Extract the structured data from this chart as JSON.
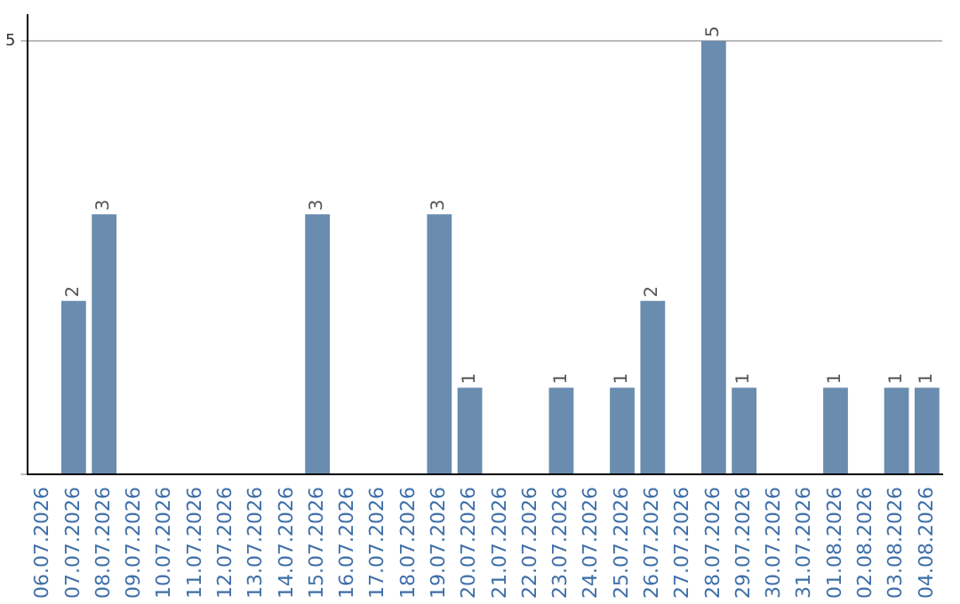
{
  "chart_data": {
    "type": "bar",
    "categories": [
      "06.07.2026",
      "07.07.2026",
      "08.07.2026",
      "09.07.2026",
      "10.07.2026",
      "11.07.2026",
      "12.07.2026",
      "13.07.2026",
      "14.07.2026",
      "15.07.2026",
      "16.07.2026",
      "17.07.2026",
      "18.07.2026",
      "19.07.2026",
      "20.07.2026",
      "21.07.2026",
      "22.07.2026",
      "23.07.2026",
      "24.07.2026",
      "25.07.2026",
      "26.07.2026",
      "27.07.2026",
      "28.07.2026",
      "29.07.2026",
      "30.07.2026",
      "31.07.2026",
      "01.08.2026",
      "02.08.2026",
      "03.08.2026",
      "04.08.2026"
    ],
    "values": [
      0,
      2,
      3,
      0,
      0,
      0,
      0,
      0,
      0,
      3,
      0,
      0,
      0,
      3,
      1,
      0,
      0,
      1,
      0,
      1,
      2,
      0,
      5,
      1,
      0,
      0,
      1,
      0,
      1,
      1
    ],
    "value_labels": [
      null,
      "2",
      "3",
      null,
      null,
      null,
      null,
      null,
      null,
      "3",
      null,
      null,
      null,
      "3",
      "1",
      null,
      null,
      "1",
      null,
      "1",
      "2",
      null,
      "5",
      "1",
      null,
      null,
      "1",
      null,
      "1",
      "1"
    ],
    "color": "#6a8caf",
    "ylim": [
      0,
      5.3
    ],
    "yticks": [
      {
        "value": 0,
        "label": null
      },
      5
    ],
    "grid": "y"
  }
}
